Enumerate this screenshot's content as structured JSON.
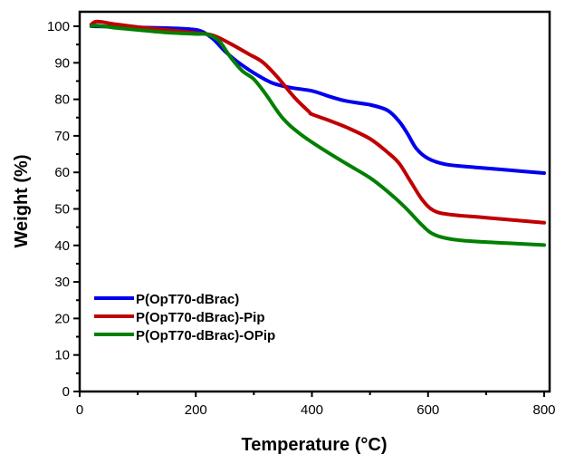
{
  "chart_data": {
    "type": "line",
    "title": "",
    "xlabel": "Temperature (°C)",
    "ylabel": "Weight (%)",
    "xlim": [
      0,
      800
    ],
    "ylim": [
      0,
      104
    ],
    "xticks": [
      0,
      200,
      400,
      600,
      800
    ],
    "xtick_labels": [
      "0",
      "200",
      "400",
      "600",
      "800"
    ],
    "yticks": [
      0,
      10,
      20,
      30,
      40,
      50,
      60,
      70,
      80,
      90,
      100
    ],
    "ytick_labels": [
      "0",
      "10",
      "20",
      "30",
      "40",
      "50",
      "60",
      "70",
      "80",
      "90",
      "100"
    ],
    "grid": false,
    "legend_position": "bottom-left",
    "series": [
      {
        "name": "P(OpT70-dBrac)",
        "color": "#0000ee",
        "x": [
          20,
          50,
          100,
          150,
          190,
          210,
          230,
          250,
          270,
          300,
          330,
          360,
          400,
          430,
          460,
          500,
          530,
          550,
          565,
          580,
          600,
          630,
          680,
          740,
          800
        ],
        "y": [
          100,
          99.9,
          99.7,
          99.5,
          99.2,
          98.6,
          96.5,
          93.2,
          90.5,
          87.2,
          84.6,
          83.3,
          82.3,
          80.8,
          79.5,
          78.5,
          77,
          74,
          70.5,
          66.5,
          63.8,
          62.2,
          61.4,
          60.6,
          59.8
        ]
      },
      {
        "name": "P(OpT70-dBrac)-Pip",
        "color": "#c00000",
        "x": [
          20,
          30,
          60,
          100,
          150,
          200,
          230,
          260,
          290,
          315,
          340,
          370,
          395,
          400,
          430,
          460,
          500,
          530,
          550,
          570,
          590,
          610,
          640,
          700,
          800
        ],
        "y": [
          100.5,
          101.3,
          100.6,
          99.8,
          99.0,
          98.2,
          97.5,
          95.2,
          92.5,
          90.2,
          86.2,
          80.5,
          76.6,
          75.9,
          74.2,
          72.3,
          69.2,
          65.5,
          62.5,
          57.5,
          52.5,
          49.5,
          48.4,
          47.6,
          46.2
        ]
      },
      {
        "name": "P(OpT70-dBrac)-OPip",
        "color": "#008000",
        "x": [
          20,
          30,
          60,
          100,
          150,
          200,
          220,
          240,
          260,
          280,
          300,
          320,
          350,
          380,
          420,
          460,
          500,
          530,
          560,
          590,
          610,
          640,
          680,
          740,
          800
        ],
        "y": [
          100,
          100.2,
          99.6,
          99.0,
          98.3,
          97.9,
          97.8,
          96.0,
          91.5,
          87.8,
          85.5,
          81.5,
          74.8,
          70.5,
          66.2,
          62.3,
          58.5,
          54.8,
          50.5,
          45.5,
          43.0,
          41.7,
          41.1,
          40.6,
          40.1
        ]
      }
    ]
  }
}
